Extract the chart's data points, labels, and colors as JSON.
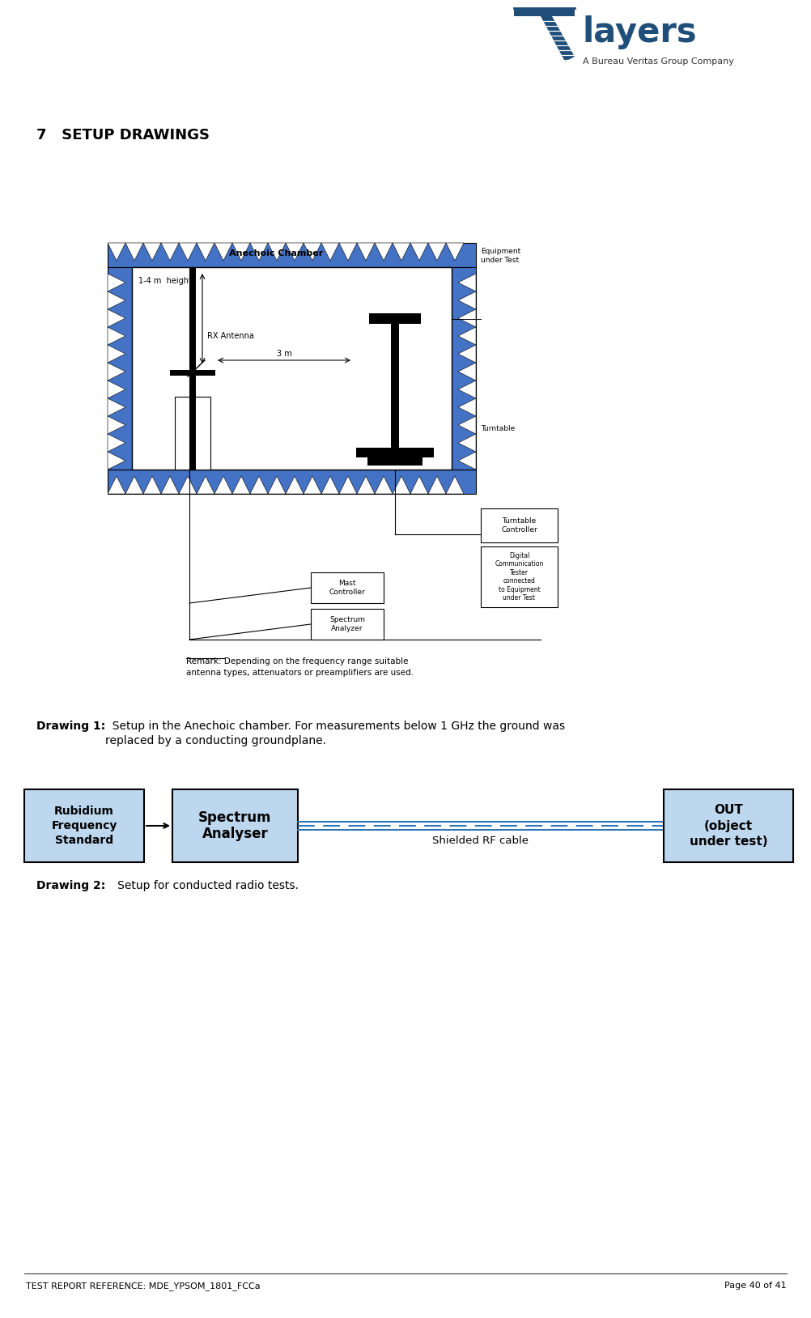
{
  "title": "7   SETUP DRAWINGS",
  "anechoic_label": "Anechoic Chamber",
  "height_label": "1-4 m  height",
  "rx_antenna_label": "RX Antenna",
  "distance_label": "3 m",
  "eut_label": "Equipment\nunder Test",
  "turntable_label": "Turntable",
  "turntable_ctrl_label": "Turntable\nController",
  "mast_ctrl_label": "Mast\nController",
  "spectrum_box_label": "Spectrum\nAnalyzer",
  "digital_label": "Digital\nCommunication\nTester\nconnected\nto Equipment\nunder Test",
  "remark1": "Remark: Depending on the frequency range suitable",
  "remark2": "antenna types, attenuators or preamplifiers are used.",
  "drawing1_bold": "Drawing 1:",
  "drawing1_rest1": "  Setup in the Anechoic chamber. For measurements below 1 GHz the ground was",
  "drawing1_rest2": "replaced by a conducting groundplane.",
  "drawing2_bold": "Drawing 2:",
  "drawing2_rest": "   Setup for conducted radio tests.",
  "box1_label": "Rubidium\nFrequency\nStandard",
  "box2_label": "Spectrum\nAnalyser",
  "box3_label": "OUT\n(object\nunder test)",
  "shielded_label": "Shielded RF cable",
  "footer_left": "TEST REPORT REFERENCE: MDE_YPSOM_1801_FCCa",
  "footer_right": "Page 40 of 41",
  "blue": "#4472C4",
  "dark_blue": "#1F4E79",
  "box_fill": "#BDD7EE",
  "box_edge": "#2E75B6"
}
